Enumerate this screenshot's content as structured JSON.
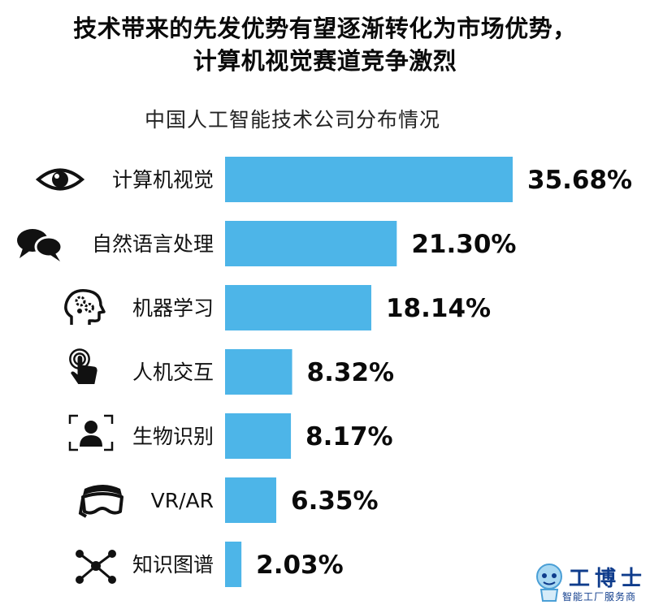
{
  "headline": {
    "line1": "技术带来的先发优势有望逐渐转化为市场优势，",
    "line2": "计算机视觉赛道竞争激烈"
  },
  "chart_data": {
    "type": "bar",
    "orientation": "horizontal",
    "title": "中国人工智能技术公司分布情况",
    "categories": [
      "计算机视觉",
      "自然语言处理",
      "机器学习",
      "人机交互",
      "生物识别",
      "VR/AR",
      "知识图谱"
    ],
    "values": [
      35.68,
      21.3,
      18.14,
      8.32,
      8.17,
      6.35,
      2.03
    ],
    "value_labels": [
      "35.68%",
      "21.30%",
      "18.14%",
      "8.32%",
      "8.17%",
      "6.35%",
      "2.03%"
    ],
    "icons": [
      "eye-icon",
      "speech-bubbles-icon",
      "brain-gears-icon",
      "touch-hand-icon",
      "face-scan-icon",
      "vr-headset-icon",
      "network-nodes-icon"
    ],
    "bar_color": "#4db5e8",
    "grid": false,
    "legend": "none"
  },
  "watermark": {
    "title": "工博士",
    "subtitle": "智能工厂服务商"
  }
}
